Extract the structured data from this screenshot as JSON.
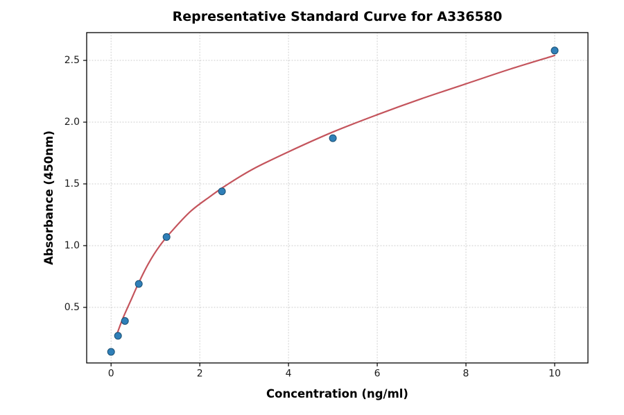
{
  "chart_data": {
    "type": "scatter",
    "title": "Representative Standard Curve for A336580",
    "xlabel": "Concentration (ng/ml)",
    "ylabel": "Absorbance (450nm)",
    "xlim": [
      -0.55,
      10.75
    ],
    "ylim": [
      0.05,
      2.725
    ],
    "x_ticks": [
      0,
      2,
      4,
      6,
      8,
      10
    ],
    "y_ticks": [
      0.5,
      1.0,
      1.5,
      2.0,
      2.5
    ],
    "grid": true,
    "legend": "none",
    "points": {
      "x": [
        0,
        0.156,
        0.313,
        0.625,
        1.25,
        2.5,
        5,
        10
      ],
      "y": [
        0.14,
        0.27,
        0.39,
        0.69,
        1.07,
        1.44,
        1.87,
        2.58
      ]
    },
    "fit_curve": [
      [
        0.12,
        0.27
      ],
      [
        0.2,
        0.35
      ],
      [
        0.3,
        0.44
      ],
      [
        0.45,
        0.56
      ],
      [
        0.625,
        0.7
      ],
      [
        0.85,
        0.86
      ],
      [
        1.1,
        1.0
      ],
      [
        1.4,
        1.13
      ],
      [
        1.8,
        1.28
      ],
      [
        2.2,
        1.39
      ],
      [
        2.6,
        1.49
      ],
      [
        3.2,
        1.62
      ],
      [
        4.0,
        1.76
      ],
      [
        5.0,
        1.92
      ],
      [
        6.0,
        2.06
      ],
      [
        7.0,
        2.19
      ],
      [
        8.0,
        2.31
      ],
      [
        9.0,
        2.43
      ],
      [
        10.0,
        2.54
      ]
    ],
    "colors": {
      "point_fill": "#2f7fb8",
      "point_edge": "#1a4f72",
      "curve": "#c4545c",
      "grid": "#c9c9c9",
      "axis": "#000000",
      "background": "#ffffff"
    }
  }
}
